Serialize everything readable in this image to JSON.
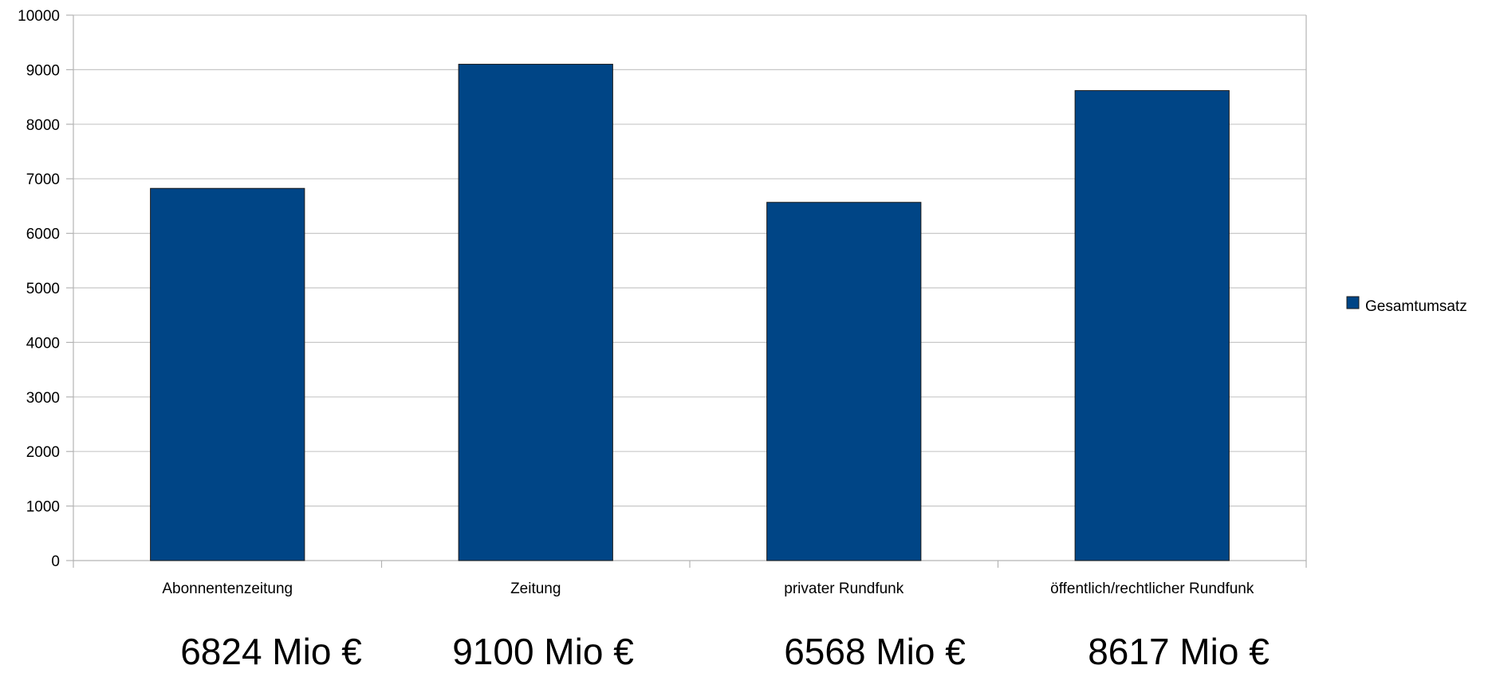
{
  "chart_data": {
    "type": "bar",
    "categories": [
      "Abonnentenzeitung",
      "Zeitung",
      "privater Rundfunk",
      "öffentlich/rechtlicher Rundfunk"
    ],
    "series": [
      {
        "name": "Gesamtumsatz",
        "values": [
          6824,
          9100,
          6568,
          8617
        ],
        "color": "#004586"
      }
    ],
    "ylim": [
      0,
      10000
    ],
    "yticks": [
      "0",
      "1000",
      "2000",
      "3000",
      "4000",
      "5000",
      "6000",
      "7000",
      "8000",
      "9000",
      "10000"
    ],
    "grid": true,
    "legend": "right",
    "annotations": [
      "6824 Mio €",
      "9100 Mio €",
      "6568 Mio €",
      "8617 Mio €"
    ]
  }
}
